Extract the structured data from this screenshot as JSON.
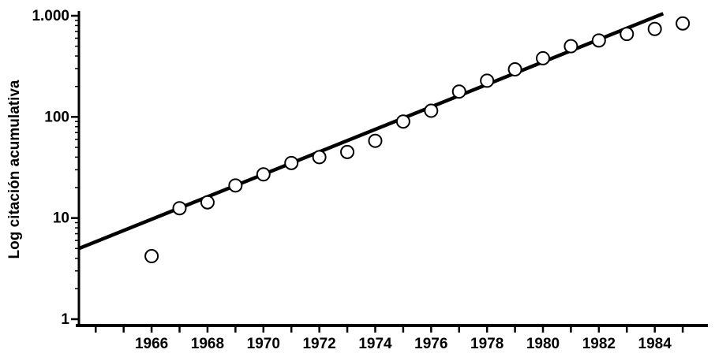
{
  "chart_data": {
    "type": "scatter",
    "title": "",
    "xlabel": "",
    "ylabel": "Log citación acumulativa",
    "yscale": "log",
    "xlim": [
      1963.4,
      1985.9
    ],
    "ylim": [
      1,
      1000
    ],
    "grid": false,
    "x_ticks": [
      1966,
      1968,
      1970,
      1972,
      1974,
      1976,
      1978,
      1980,
      1982,
      1984
    ],
    "x_tick_labels": [
      "1966",
      "1968",
      "1970",
      "1972",
      "1974",
      "1976",
      "1978",
      "1980",
      "1982",
      "1984"
    ],
    "y_ticks": [
      1,
      10,
      100,
      1000
    ],
    "y_tick_labels": [
      "1",
      "10",
      "100",
      "1.000"
    ],
    "series": [
      {
        "marker": "open-circle",
        "x": [
          1966,
          1967,
          1968,
          1969,
          1970,
          1971,
          1972,
          1973,
          1974,
          1975,
          1976,
          1977,
          1978,
          1979,
          1980,
          1981,
          1982,
          1983,
          1984,
          1985
        ],
        "y": [
          4.2,
          12.5,
          14.3,
          21,
          27,
          35,
          40,
          45,
          58,
          90,
          115,
          178,
          228,
          295,
          380,
          500,
          570,
          660,
          740,
          840
        ]
      }
    ],
    "fit_line": {
      "x": [
        1963.4,
        1984.3
      ],
      "y": [
        5,
        1050
      ]
    },
    "colors": {
      "ink": "#000000",
      "marker_fill": "#ffffff",
      "background": "#ffffff"
    }
  }
}
